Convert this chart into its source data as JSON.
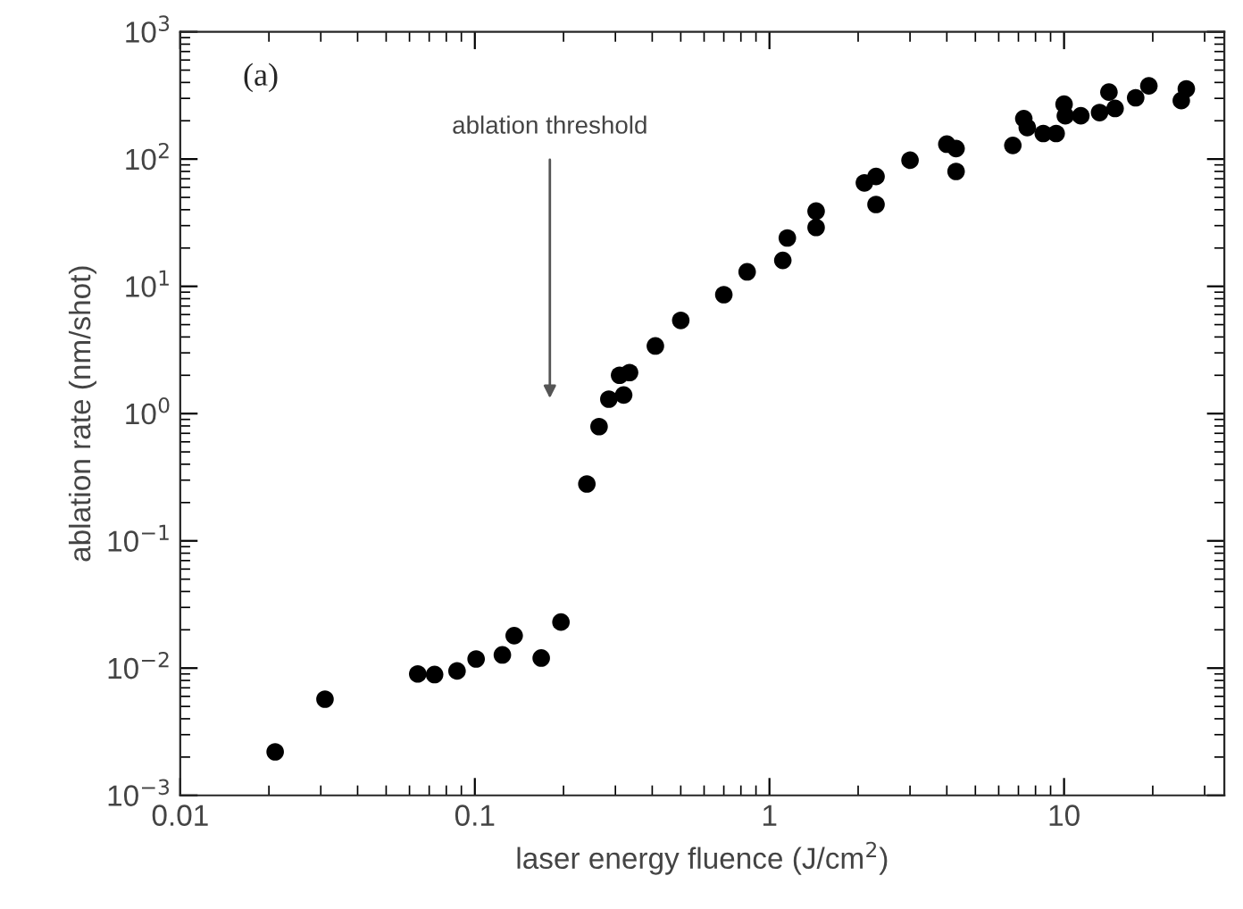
{
  "chart_data": {
    "type": "scatter",
    "xlabel": "laser energy fluence (J/cm$^{2}$)",
    "ylabel": "ablation rate (nm/shot)",
    "log": "xy",
    "marker": "circle",
    "grid": false,
    "legend": false,
    "xlim": [
      0.01,
      35
    ],
    "ylim": [
      0.001,
      1000
    ],
    "xticks": [
      0.01,
      0.1,
      1,
      10
    ],
    "yticks": [
      {
        "value": 0.001,
        "label": "10$^{−3}$"
      },
      {
        "value": 0.01,
        "label": "10$^{−2}$"
      },
      {
        "value": 0.1,
        "label": "10$^{−1}$"
      },
      {
        "value": 1,
        "label": "10$^{0}$"
      },
      {
        "value": 10,
        "label": "10$^{1}$"
      },
      {
        "value": 100,
        "label": "10$^{2}$"
      },
      {
        "value": 1000,
        "label": "10$^{3}$"
      }
    ],
    "annotations": [
      "(a)",
      "ablation threshold"
    ],
    "series": [
      {
        "color": "#000000",
        "x": [
          0.021,
          0.031,
          0.064,
          0.073,
          0.087,
          0.101,
          0.124,
          0.136,
          0.168,
          0.196,
          0.24,
          0.264,
          0.285,
          0.32,
          0.31,
          0.335,
          0.41,
          0.5,
          0.7,
          0.84,
          1.11,
          1.15,
          1.44,
          1.44,
          2.1,
          2.3,
          2.3,
          3.0,
          4.0,
          4.3,
          4.3,
          6.7,
          7.3,
          7.5,
          8.5,
          9.4,
          10.0,
          10.1,
          11.4,
          13.2,
          14.2,
          14.9,
          17.5,
          19.4,
          25,
          26
        ],
        "values": [
          0.0022,
          0.0057,
          0.009,
          0.0089,
          0.0095,
          0.0118,
          0.0127,
          0.018,
          0.012,
          0.023,
          0.28,
          0.79,
          1.3,
          1.4,
          2.0,
          2.1,
          3.4,
          5.4,
          8.6,
          13,
          16,
          24,
          29,
          39,
          65,
          73,
          44,
          98,
          131,
          121,
          80,
          128,
          208,
          177,
          159,
          159,
          270,
          219,
          219,
          232,
          336,
          250,
          303,
          376,
          288,
          356
        ]
      }
    ]
  }
}
